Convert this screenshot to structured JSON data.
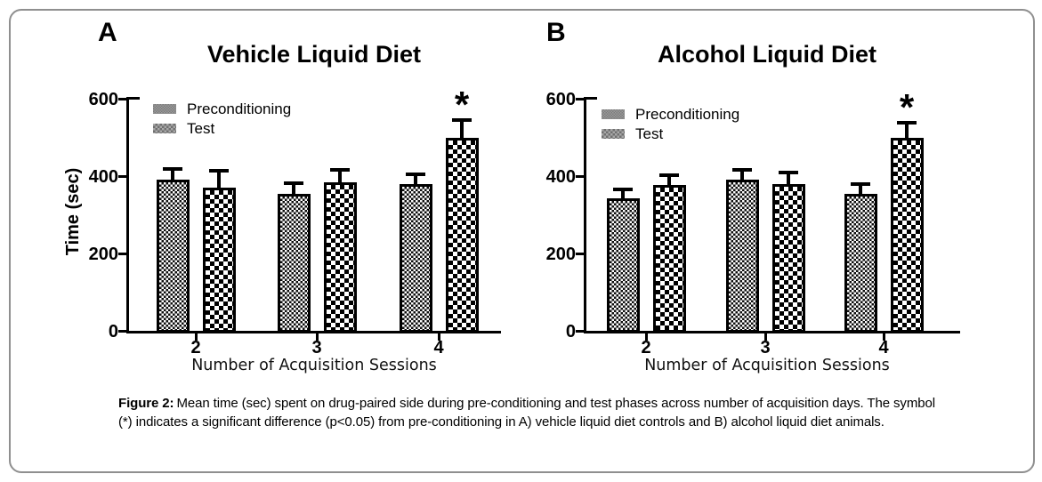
{
  "figure": {
    "caption_prefix": "Figure 2:",
    "caption_text": "Mean time (sec) spent on drug-paired side during pre-conditioning and test phases across number of acquisition days. The symbol (*) indicates a significant difference (p<0.05) from pre-conditioning in A) vehicle liquid diet controls and B) alcohol liquid diet animals."
  },
  "colors": {
    "axis": "#000000",
    "bar_fill_dark": "#000000",
    "bar_fill_light": "#ffffff",
    "legend_swatch_gray": "#8c8c8c",
    "frame_border": "#8f8f8f"
  },
  "chart_data": [
    {
      "type": "bar",
      "panel_letter": "A",
      "title": "Vehicle Liquid Diet",
      "xlabel": "Number of Acquisition Sessions",
      "ylabel": "Time (sec)",
      "categories": [
        "2",
        "3",
        "4"
      ],
      "yticks": [
        0,
        200,
        400,
        600
      ],
      "ylim": [
        0,
        600
      ],
      "grid": false,
      "legend_position": "top-left-inside",
      "legend": [
        "Preconditioning",
        "Test"
      ],
      "series": [
        {
          "name": "Preconditioning",
          "pattern": "fine-checker",
          "values": [
            390,
            355,
            380
          ],
          "errors": [
            30,
            30,
            26
          ]
        },
        {
          "name": "Test",
          "pattern": "coarse-checker",
          "values": [
            370,
            385,
            500
          ],
          "errors": [
            46,
            34,
            47
          ]
        }
      ],
      "significance": [
        {
          "category": "4",
          "series": "Test",
          "symbol": "*",
          "meaning": "p<0.05 vs pre-conditioning"
        }
      ]
    },
    {
      "type": "bar",
      "panel_letter": "B",
      "title": "Alcohol Liquid Diet",
      "xlabel": "Number of Acquisition Sessions",
      "ylabel": "",
      "categories": [
        "2",
        "3",
        "4"
      ],
      "yticks": [
        0,
        200,
        400,
        600
      ],
      "ylim": [
        0,
        600
      ],
      "grid": false,
      "legend_position": "top-left-inside",
      "legend": [
        "Preconditioning",
        "Test"
      ],
      "series": [
        {
          "name": "Preconditioning",
          "pattern": "fine-checker",
          "values": [
            343,
            390,
            355
          ],
          "errors": [
            24,
            28,
            26
          ]
        },
        {
          "name": "Test",
          "pattern": "coarse-checker",
          "values": [
            377,
            380,
            500
          ],
          "errors": [
            28,
            31,
            40
          ]
        }
      ],
      "significance": [
        {
          "category": "4",
          "series": "Test",
          "symbol": "*",
          "meaning": "p<0.05 vs pre-conditioning"
        }
      ]
    }
  ]
}
